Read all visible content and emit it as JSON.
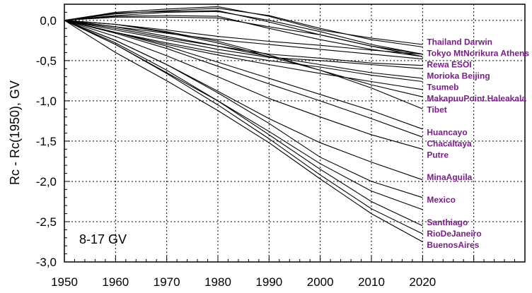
{
  "chart_data": {
    "type": "line",
    "ylabel": "Rc - Rc(1950), GV",
    "xlabel": "",
    "annotation": "8-17 GV",
    "xlim": [
      1950,
      2040
    ],
    "ylim": [
      -3.0,
      0.2
    ],
    "grid": true,
    "x_ticks": [
      "1950",
      "1960",
      "1970",
      "1980",
      "1990",
      "2000",
      "2010",
      "2020"
    ],
    "y_ticks": [
      "0,0",
      "-0,5",
      "-1,0",
      "-1,5",
      "-2,0",
      "-2,5",
      "-3,0"
    ],
    "x": [
      1950,
      1960,
      1970,
      1980,
      1990,
      2000,
      2010,
      2020
    ],
    "labels": [
      {
        "text": "Thailand   Darwin",
        "y": -0.27
      },
      {
        "text": "Tokyo  MtNorikura Athens",
        "y": -0.41
      },
      {
        "text": "Rewa     ESOI",
        "y": -0.55
      },
      {
        "text": "Morioka Beijing",
        "y": -0.69
      },
      {
        "text": "Tsumeb",
        "y": -0.83
      },
      {
        "text": "MakapuuPoint Haleakala",
        "y": -0.97
      },
      {
        "text": "Tibet",
        "y": -1.11
      },
      {
        "text": "Huancayo",
        "y": -1.39
      },
      {
        "text": "Chacaltaya",
        "y": -1.53
      },
      {
        "text": "Putre",
        "y": -1.67
      },
      {
        "text": "MinaAguila",
        "y": -1.95
      },
      {
        "text": "Mexico",
        "y": -2.23
      },
      {
        "text": "Santhiago",
        "y": -2.51
      },
      {
        "text": "RioDeJaneiro",
        "y": -2.65
      },
      {
        "text": "BuenosAires",
        "y": -2.79
      }
    ],
    "series": [
      {
        "values": [
          0,
          0.1,
          0.14,
          0.17,
          0.05,
          -0.12,
          -0.22,
          -0.3
        ]
      },
      {
        "values": [
          0,
          0.08,
          0.12,
          0.15,
          0.06,
          -0.1,
          -0.24,
          -0.33
        ]
      },
      {
        "values": [
          0,
          0.09,
          0.11,
          0.12,
          -0.02,
          -0.18,
          -0.32,
          -0.42
        ]
      },
      {
        "values": [
          0,
          0.06,
          0.1,
          0.11,
          0.0,
          -0.14,
          -0.3,
          -0.42
        ]
      },
      {
        "values": [
          0,
          0.05,
          0.06,
          0.05,
          -0.1,
          -0.24,
          -0.36,
          -0.45
        ]
      },
      {
        "values": [
          0,
          0.04,
          0.04,
          0.03,
          -0.08,
          -0.18,
          -0.32,
          -0.45
        ]
      },
      {
        "values": [
          0,
          -0.05,
          -0.12,
          -0.2,
          -0.26,
          -0.31,
          -0.37,
          -0.42
        ]
      },
      {
        "values": [
          0,
          -0.08,
          -0.16,
          -0.24,
          -0.3,
          -0.36,
          -0.42,
          -0.48
        ]
      },
      {
        "values": [
          0,
          -0.08,
          -0.2,
          -0.32,
          -0.42,
          -0.47,
          -0.53,
          -0.56
        ]
      },
      {
        "values": [
          0,
          -0.12,
          -0.24,
          -0.36,
          -0.46,
          -0.5,
          -0.55,
          -0.6
        ]
      },
      {
        "values": [
          0,
          -0.1,
          -0.22,
          -0.32,
          -0.45,
          -0.55,
          -0.65,
          -0.72
        ]
      },
      {
        "values": [
          0,
          -0.15,
          -0.28,
          -0.4,
          -0.5,
          -0.58,
          -0.68,
          -0.76
        ]
      },
      {
        "values": [
          0,
          -0.15,
          -0.3,
          -0.43,
          -0.55,
          -0.66,
          -0.76,
          -0.86
        ]
      },
      {
        "values": [
          0,
          -0.05,
          -0.15,
          -0.28,
          -0.45,
          -0.62,
          -0.8,
          -0.95
        ]
      },
      {
        "values": [
          0,
          -0.05,
          -0.14,
          -0.26,
          -0.43,
          -0.62,
          -0.84,
          -1.1
        ]
      },
      {
        "values": [
          0,
          -0.15,
          -0.32,
          -0.52,
          -0.72,
          -0.92,
          -1.12,
          -1.35
        ]
      },
      {
        "values": [
          0,
          -0.16,
          -0.35,
          -0.57,
          -0.79,
          -1.0,
          -1.22,
          -1.45
        ]
      },
      {
        "values": [
          0,
          -0.2,
          -0.44,
          -0.7,
          -0.97,
          -1.2,
          -1.42,
          -1.6
        ]
      },
      {
        "values": [
          0,
          -0.25,
          -0.55,
          -0.88,
          -1.22,
          -1.52,
          -1.76,
          -1.98
        ]
      },
      {
        "values": [
          0,
          -0.25,
          -0.55,
          -0.9,
          -1.28,
          -1.7,
          -2.0,
          -2.2
        ]
      },
      {
        "values": [
          0,
          -0.3,
          -0.65,
          -1.0,
          -1.38,
          -1.78,
          -2.12,
          -2.35
        ]
      },
      {
        "values": [
          0,
          -0.28,
          -0.62,
          -1.0,
          -1.42,
          -1.85,
          -2.25,
          -2.55
        ]
      },
      {
        "values": [
          0,
          -0.3,
          -0.66,
          -1.05,
          -1.47,
          -1.92,
          -2.34,
          -2.65
        ]
      },
      {
        "values": [
          0,
          -0.4,
          -0.75,
          -1.12,
          -1.52,
          -1.97,
          -2.4,
          -2.75
        ]
      }
    ]
  }
}
